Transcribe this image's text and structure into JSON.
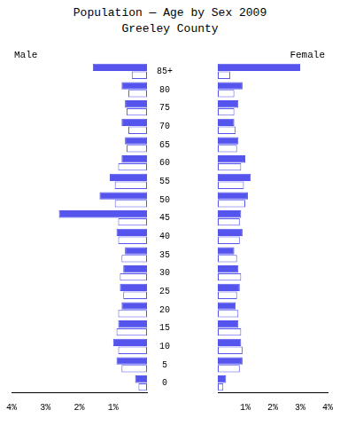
{
  "chart_data": [
    {
      "type": "bar",
      "orientation": "horizontal",
      "title": "Population — Age by Sex 2009\nGreeley County",
      "annotation": "Male",
      "categories": [
        "0",
        "5",
        "10",
        "15",
        "20",
        "25",
        "30",
        "35",
        "40",
        "45",
        "50",
        "55",
        "60",
        "65",
        "70",
        "75",
        "80",
        "85+"
      ],
      "color": "#5555ee",
      "series": [
        {
          "color": "#5555ee",
          "values": [
            0.35,
            0.9,
            1.0,
            0.85,
            0.75,
            0.8,
            0.7,
            0.65,
            0.9,
            2.6,
            1.4,
            1.1,
            0.75,
            0.65,
            0.75,
            0.65,
            0.75,
            1.6
          ]
        },
        {
          "color": "#ffffff",
          "values": [
            0.25,
            0.75,
            0.85,
            0.9,
            0.85,
            0.7,
            0.8,
            0.75,
            0.85,
            0.85,
            0.95,
            0.95,
            0.85,
            0.6,
            0.55,
            0.6,
            0.55,
            0.45
          ]
        }
      ],
      "xlim": [
        4.0,
        0
      ],
      "xticks": [
        {
          "value": 4,
          "label": "4%"
        },
        {
          "value": 3,
          "label": "3%"
        },
        {
          "value": 2,
          "label": "2%"
        },
        {
          "value": 1,
          "label": "1%"
        }
      ],
      "grid": false
    },
    {
      "type": "bar",
      "orientation": "horizontal",
      "annotation": "Female",
      "categories": [
        "0",
        "5",
        "10",
        "15",
        "20",
        "25",
        "30",
        "35",
        "40",
        "45",
        "50",
        "55",
        "60",
        "65",
        "70",
        "75",
        "80",
        "85+"
      ],
      "color": "#5555ee",
      "series": [
        {
          "color": "#5555ee",
          "values": [
            0.3,
            0.9,
            0.85,
            0.75,
            0.65,
            0.8,
            0.75,
            0.6,
            0.9,
            0.85,
            1.1,
            1.2,
            1.0,
            0.75,
            0.6,
            0.75,
            0.9,
            3.0
          ]
        },
        {
          "color": "#ffffff",
          "values": [
            0.2,
            0.8,
            0.9,
            0.85,
            0.75,
            0.7,
            0.85,
            0.7,
            0.8,
            0.8,
            1.0,
            0.95,
            0.85,
            0.7,
            0.65,
            0.6,
            0.6,
            0.45
          ]
        }
      ],
      "xlim": [
        0,
        4.0
      ],
      "xticks": [
        {
          "value": 1,
          "label": "1%"
        },
        {
          "value": 2,
          "label": "2%"
        },
        {
          "value": 3,
          "label": "3%"
        },
        {
          "value": 4,
          "label": "4%"
        }
      ],
      "grid": false
    }
  ]
}
